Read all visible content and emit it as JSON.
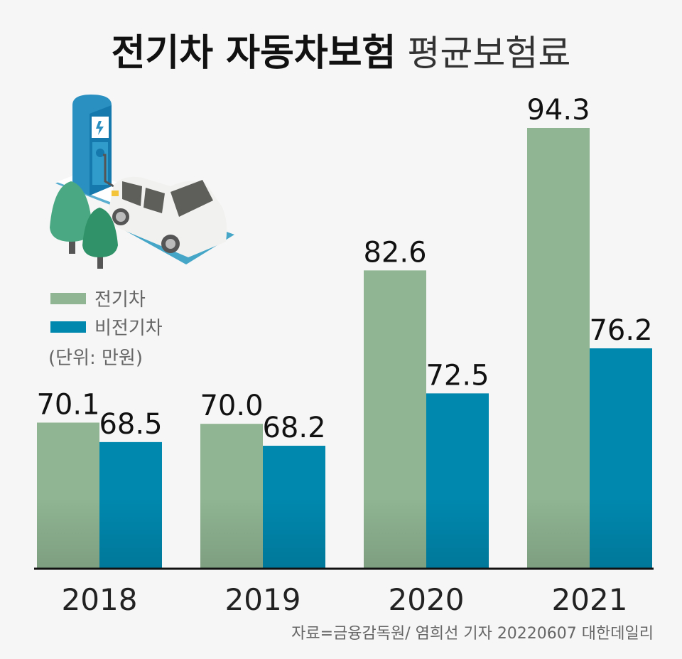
{
  "chart_data": {
    "type": "bar",
    "title_bold": "전기차 자동차보험",
    "title_light": "평균보험료",
    "categories": [
      "2018",
      "2019",
      "2020",
      "2021"
    ],
    "series": [
      {
        "name": "전기차",
        "color": "#8fb592",
        "values": [
          70.1,
          70.0,
          82.6,
          94.3
        ]
      },
      {
        "name": "비전기차",
        "color": "#0088ae",
        "values": [
          68.5,
          68.2,
          72.5,
          76.2
        ]
      }
    ],
    "value_labels": [
      [
        "70.1",
        "70.0",
        "82.6",
        "94.3"
      ],
      [
        "68.5",
        "68.2",
        "72.5",
        "76.2"
      ]
    ],
    "unit": "(단위: 만원)",
    "ylim": [
      58.1,
      100
    ],
    "legend": "left",
    "grid": false
  },
  "source": "자료=금융감독원/ 염희선 기자 20220607 대한데일리"
}
